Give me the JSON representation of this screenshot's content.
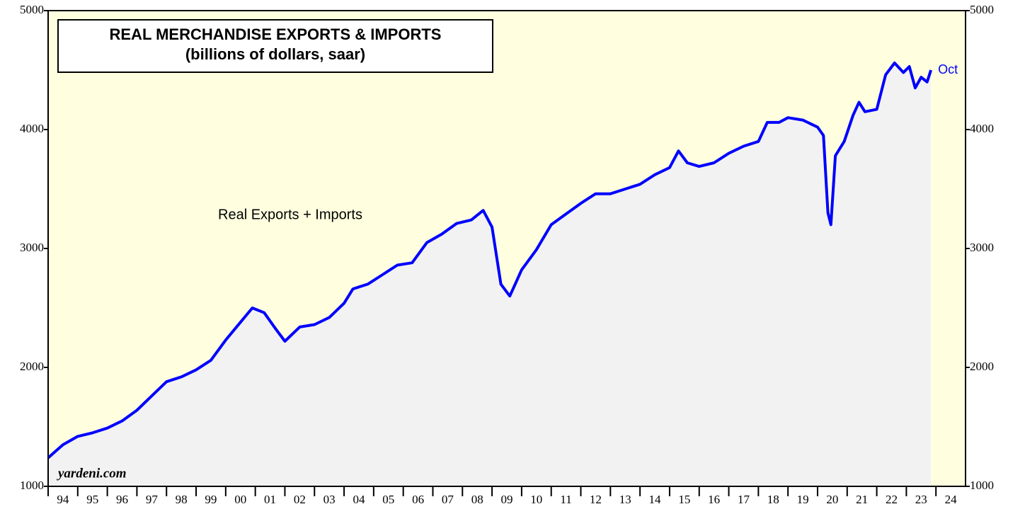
{
  "chart_data": {
    "type": "area-line",
    "title": "REAL MERCHANDISE EXPORTS & IMPORTS",
    "subtitle": "(billions of dollars, saar)",
    "annotations": [
      "Real Exports + Imports",
      "yardeni.com",
      "Oct"
    ],
    "x": [
      1994.0,
      1994.5,
      1995.0,
      1995.5,
      1996.0,
      1996.5,
      1997.0,
      1997.5,
      1998.0,
      1998.5,
      1999.0,
      1999.5,
      2000.0,
      2000.5,
      2000.9,
      2001.3,
      2001.7,
      2002.0,
      2002.5,
      2003.0,
      2003.5,
      2004.0,
      2004.3,
      2004.8,
      2005.3,
      2005.8,
      2006.3,
      2006.8,
      2007.3,
      2007.8,
      2008.3,
      2008.7,
      2009.0,
      2009.3,
      2009.6,
      2010.0,
      2010.5,
      2011.0,
      2011.5,
      2012.0,
      2012.5,
      2013.0,
      2013.5,
      2014.0,
      2014.5,
      2015.0,
      2015.3,
      2015.6,
      2016.0,
      2016.5,
      2017.0,
      2017.5,
      2018.0,
      2018.3,
      2018.7,
      2019.0,
      2019.5,
      2020.0,
      2020.2,
      2020.35,
      2020.45,
      2020.6,
      2020.9,
      2021.2,
      2021.4,
      2021.6,
      2022.0,
      2022.3,
      2022.6,
      2022.9,
      2023.1,
      2023.3,
      2023.5,
      2023.7,
      2023.83
    ],
    "series": [
      {
        "name": "Real Exports + Imports",
        "color": "#0000ff",
        "values": [
          1240,
          1350,
          1420,
          1450,
          1490,
          1550,
          1640,
          1760,
          1880,
          1920,
          1980,
          2060,
          2230,
          2380,
          2500,
          2460,
          2320,
          2220,
          2340,
          2360,
          2420,
          2540,
          2660,
          2700,
          2780,
          2860,
          2880,
          3050,
          3120,
          3210,
          3240,
          3320,
          3180,
          2700,
          2600,
          2820,
          2990,
          3200,
          3290,
          3380,
          3460,
          3460,
          3500,
          3540,
          3620,
          3680,
          3820,
          3720,
          3690,
          3720,
          3800,
          3860,
          3900,
          4060,
          4060,
          4100,
          4080,
          4020,
          3950,
          3300,
          3200,
          3780,
          3900,
          4120,
          4230,
          4150,
          4170,
          4460,
          4560,
          4480,
          4530,
          4350,
          4440,
          4400,
          4500
        ]
      }
    ],
    "xlim": [
      1994,
      2025
    ],
    "xticks": [
      {
        "value": 1994,
        "label": "94"
      },
      {
        "value": 1995,
        "label": "95"
      },
      {
        "value": 1996,
        "label": "96"
      },
      {
        "value": 1997,
        "label": "97"
      },
      {
        "value": 1998,
        "label": "98"
      },
      {
        "value": 1999,
        "label": "99"
      },
      {
        "value": 2000,
        "label": "00"
      },
      {
        "value": 2001,
        "label": "01"
      },
      {
        "value": 2002,
        "label": "02"
      },
      {
        "value": 2003,
        "label": "03"
      },
      {
        "value": 2004,
        "label": "04"
      },
      {
        "value": 2005,
        "label": "05"
      },
      {
        "value": 2006,
        "label": "06"
      },
      {
        "value": 2007,
        "label": "07"
      },
      {
        "value": 2008,
        "label": "08"
      },
      {
        "value": 2009,
        "label": "09"
      },
      {
        "value": 2010,
        "label": "10"
      },
      {
        "value": 2011,
        "label": "11"
      },
      {
        "value": 2012,
        "label": "12"
      },
      {
        "value": 2013,
        "label": "13"
      },
      {
        "value": 2014,
        "label": "14"
      },
      {
        "value": 2015,
        "label": "15"
      },
      {
        "value": 2016,
        "label": "16"
      },
      {
        "value": 2017,
        "label": "17"
      },
      {
        "value": 2018,
        "label": "18"
      },
      {
        "value": 2019,
        "label": "19"
      },
      {
        "value": 2020,
        "label": "20"
      },
      {
        "value": 2021,
        "label": "21"
      },
      {
        "value": 2022,
        "label": "22"
      },
      {
        "value": 2023,
        "label": "23"
      },
      {
        "value": 2024,
        "label": "24"
      }
    ],
    "ylim": [
      1000,
      5000
    ],
    "yticks": [
      1000,
      2000,
      3000,
      4000,
      5000
    ],
    "background": "#ffffe0",
    "area_color": "#f2f2f2"
  }
}
